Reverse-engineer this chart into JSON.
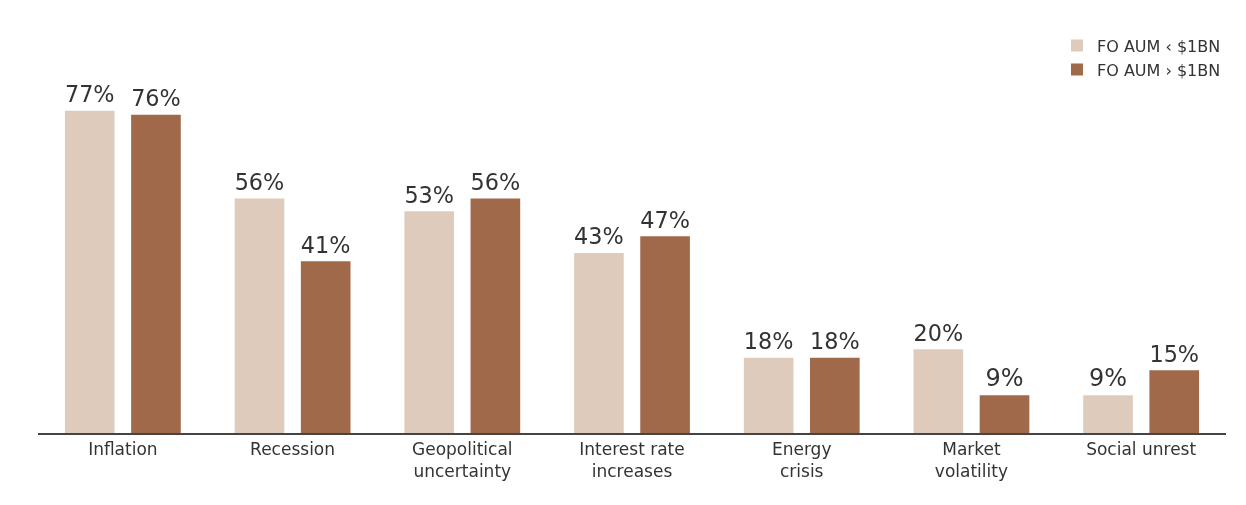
{
  "chart_data": {
    "type": "bar",
    "categories": [
      "Inflation",
      "Recession",
      "Geopolitical\nuncertainty",
      "Interest rate\nincreases",
      "Energy\ncrisis",
      "Market\nvolatility",
      "Social unrest"
    ],
    "series": [
      {
        "name": "FO AUM ‹ $1BN",
        "color": "#dfcbbb",
        "values": [
          77,
          56,
          53,
          43,
          18,
          20,
          9
        ],
        "value_labels": [
          "77%",
          "56%",
          "53%",
          "43%",
          "18%",
          "20%",
          "9%"
        ]
      },
      {
        "name": "FO AUM › $1BN",
        "color": "#a0694a",
        "values": [
          76,
          41,
          56,
          47,
          18,
          9,
          15
        ],
        "value_labels": [
          "76%",
          "41%",
          "56%",
          "47%",
          "18%",
          "9%",
          "15%"
        ]
      }
    ],
    "legend": "top right"
  }
}
